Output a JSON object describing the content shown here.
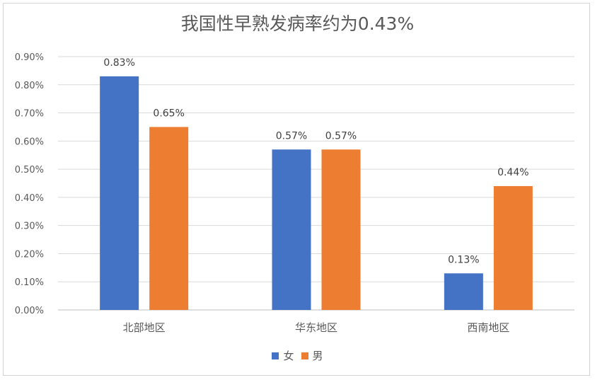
{
  "chart_data": {
    "type": "bar",
    "title": "我国性早熟发病率约为0.43%",
    "categories": [
      "北部地区",
      "华东地区",
      "西南地区"
    ],
    "series": [
      {
        "name": "女",
        "color": "#4472c4",
        "values": [
          0.83,
          0.57,
          0.13
        ],
        "labels": [
          "0.83%",
          "0.57%",
          "0.13%"
        ]
      },
      {
        "name": "男",
        "color": "#ed7d31",
        "values": [
          0.65,
          0.57,
          0.44
        ],
        "labels": [
          "0.65%",
          "0.57%",
          "0.44%"
        ]
      }
    ],
    "ylim": [
      0,
      0.9
    ],
    "yticks": [
      0,
      0.1,
      0.2,
      0.3,
      0.4,
      0.5,
      0.6,
      0.7,
      0.8,
      0.9
    ],
    "ytick_labels": [
      "0.00%",
      "0.10%",
      "0.20%",
      "0.30%",
      "0.40%",
      "0.50%",
      "0.60%",
      "0.70%",
      "0.80%",
      "0.90%"
    ],
    "grid": true,
    "legend_position": "bottom"
  }
}
